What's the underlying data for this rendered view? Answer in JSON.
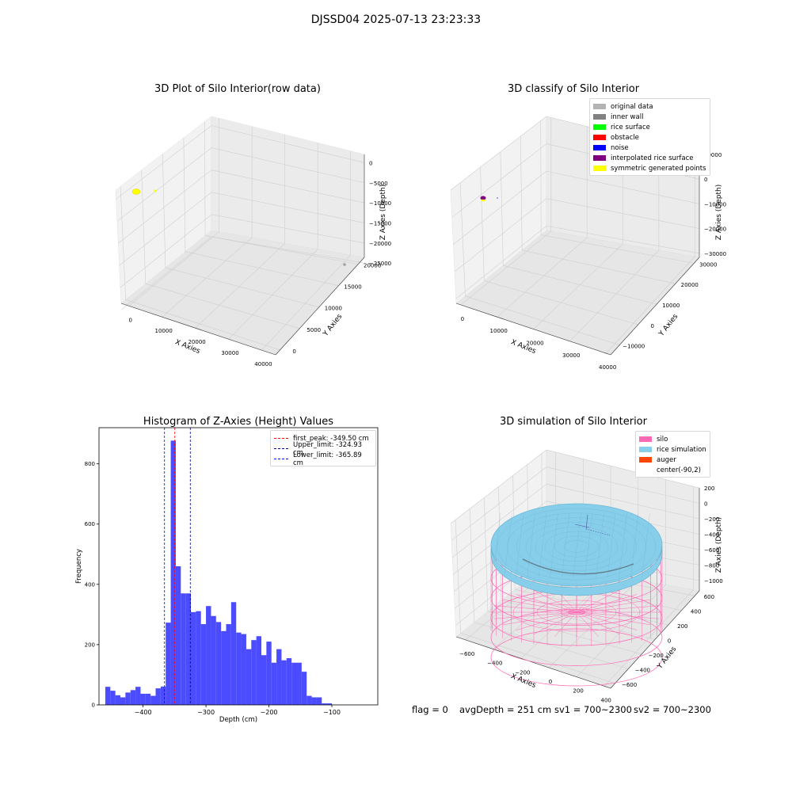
{
  "figure": {
    "suptitle": "DJSSD04 2025-07-13 23:23:33",
    "footer": {
      "flag": "flag = 0",
      "avg_depth": "avgDepth = 251 cm",
      "sv1": "sv1 = 700~2300",
      "sv2": "sv2 = 700~2300"
    }
  },
  "chart_data": [
    {
      "type": "scatter3d",
      "title": "3D Plot of Silo Interior(row data)",
      "xlabel": "X Axies",
      "ylabel": "Y Axies",
      "zlabel": "Z Axies (Depth)",
      "x_ticks": [
        "0",
        "10000",
        "20000",
        "30000",
        "40000"
      ],
      "y_ticks": [
        "0",
        "5000",
        "10000",
        "15000",
        "20000"
      ],
      "z_ticks": [
        "0",
        "−5000",
        "−10000",
        "−15000",
        "−20000",
        "−25000"
      ],
      "series": [
        {
          "name": "",
          "color": "#ffff00",
          "points": "yellow cluster near x≈0"
        },
        {
          "name": "",
          "color": "#a0a0a0",
          "points": "single gray point near far corner"
        }
      ]
    },
    {
      "type": "scatter3d",
      "title": "3D classify of Silo Interior",
      "xlabel": "X Axies",
      "ylabel": "Y Axies",
      "zlabel": "Z Axies (Depth)",
      "x_ticks": [
        "0",
        "10000",
        "20000",
        "30000",
        "40000"
      ],
      "y_ticks": [
        "−10000",
        "0",
        "10000",
        "20000",
        "30000"
      ],
      "z_ticks": [
        "10000",
        "0",
        "−10000",
        "−20000",
        "−30000"
      ],
      "legend_position": "top-right",
      "legend": [
        {
          "label": "original data",
          "color": "#b3b3b3"
        },
        {
          "label": "inner wall",
          "color": "#808080"
        },
        {
          "label": "rice surface",
          "color": "#00ff00"
        },
        {
          "label": "obstacle",
          "color": "#ff0000"
        },
        {
          "label": "noise",
          "color": "#0000ff"
        },
        {
          "label": "interpolated rice surface",
          "color": "#800080"
        },
        {
          "label": "symmetric generated points",
          "color": "#ffff00"
        }
      ]
    },
    {
      "type": "bar",
      "title": "Histogram of Z-Axies (Height) Values",
      "xlabel": "Depth (cm)",
      "ylabel": "Frequency",
      "xlim": [
        -470,
        -27
      ],
      "ylim": [
        0,
        920
      ],
      "x_ticks": [
        -400,
        -300,
        -200,
        -100
      ],
      "x_tick_labels": [
        "−400",
        "−300",
        "−200",
        "−100"
      ],
      "y_ticks": [
        0,
        200,
        400,
        600,
        800
      ],
      "bin_start": -460,
      "bin_width": 8,
      "values": [
        60,
        47,
        32,
        25,
        41,
        49,
        60,
        37,
        37,
        30,
        55,
        61,
        273,
        877,
        460,
        370,
        370,
        308,
        311,
        268,
        328,
        295,
        275,
        245,
        268,
        341,
        240,
        235,
        185,
        215,
        228,
        165,
        210,
        140,
        185,
        148,
        155,
        140,
        140,
        110,
        30,
        25,
        25,
        5,
        5
      ],
      "bar_color": "#4b4bff",
      "legend_position": "top-right",
      "vlines": [
        {
          "label": "first_peak: -349.50 cm",
          "x": -349.5,
          "color": "#ff0000"
        },
        {
          "label": "Upper_limit: -324.93 cm",
          "x": -324.93,
          "color": "#00008b"
        },
        {
          "label": "Lower_limit: -365.89 cm",
          "x": -365.89,
          "color": "#0000ff"
        }
      ]
    },
    {
      "type": "surface3d",
      "title": "3D simulation of Silo Interior",
      "xlabel": "X Axies",
      "ylabel": "Y Axies",
      "zlabel": "Z Axies (Depth)",
      "x_ticks": [
        "−600",
        "−400",
        "−200",
        "0",
        "200",
        "400"
      ],
      "y_ticks": [
        "−600",
        "−400",
        "−200",
        "0",
        "200",
        "400",
        "600"
      ],
      "z_ticks": [
        "200",
        "0",
        "−200",
        "−400",
        "−600",
        "−800",
        "−1000"
      ],
      "legend_position": "top-right",
      "legend": [
        {
          "label": "silo",
          "color": "#ff69b4"
        },
        {
          "label": "rice simulation",
          "color": "#87ceeb"
        },
        {
          "label": "auger",
          "color": "#ff4500"
        },
        {
          "label": "center(-90,2)",
          "color": "none"
        }
      ]
    }
  ]
}
